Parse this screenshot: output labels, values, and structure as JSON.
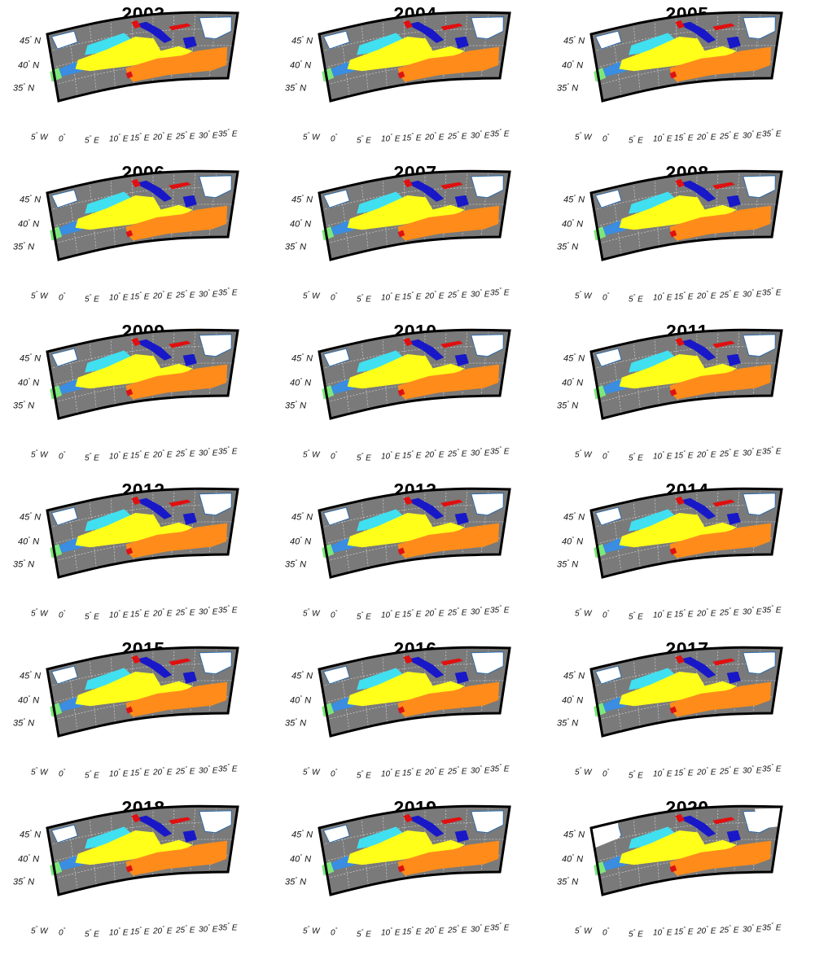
{
  "panels": [
    {
      "year": "2003",
      "variant": "a"
    },
    {
      "year": "2004",
      "variant": "a"
    },
    {
      "year": "2005",
      "variant": "a"
    },
    {
      "year": "2006",
      "variant": "b"
    },
    {
      "year": "2007",
      "variant": "b"
    },
    {
      "year": "2008",
      "variant": "b"
    },
    {
      "year": "2009",
      "variant": "b"
    },
    {
      "year": "2010",
      "variant": "c"
    },
    {
      "year": "2011",
      "variant": "c"
    },
    {
      "year": "2012",
      "variant": "c"
    },
    {
      "year": "2013",
      "variant": "c"
    },
    {
      "year": "2014",
      "variant": "c"
    },
    {
      "year": "2015",
      "variant": "c"
    },
    {
      "year": "2016",
      "variant": "c"
    },
    {
      "year": "2017",
      "variant": "c"
    },
    {
      "year": "2018",
      "variant": "c"
    },
    {
      "year": "2019",
      "variant": "c"
    },
    {
      "year": "2020",
      "variant": "d"
    }
  ],
  "lat_labels": [
    "45",
    "40",
    "35"
  ],
  "lat_suffix": "N",
  "lon_labels": [
    {
      "deg": "5",
      "dir": "W"
    },
    {
      "deg": "0",
      "dir": ""
    },
    {
      "deg": "5",
      "dir": "E"
    },
    {
      "deg": "10",
      "dir": "E"
    },
    {
      "deg": "15",
      "dir": "E"
    },
    {
      "deg": "20",
      "dir": "E"
    },
    {
      "deg": "25",
      "dir": "E"
    },
    {
      "deg": "30",
      "dir": "E"
    },
    {
      "deg": "35",
      "dir": "E"
    }
  ],
  "colors": {
    "background": "#7a7a7a",
    "frame": "#000000",
    "grid": "#d0d0d0",
    "land": "#ffffff",
    "coast": "#2b6aa8",
    "class_light_blue": "#40e0f0",
    "class_blue": "#3a8de0",
    "class_dark_blue": "#1818c8",
    "class_yellow": "#ffff1a",
    "class_orange": "#ff8c1a",
    "class_red": "#e01010",
    "class_green": "#7de87a"
  }
}
